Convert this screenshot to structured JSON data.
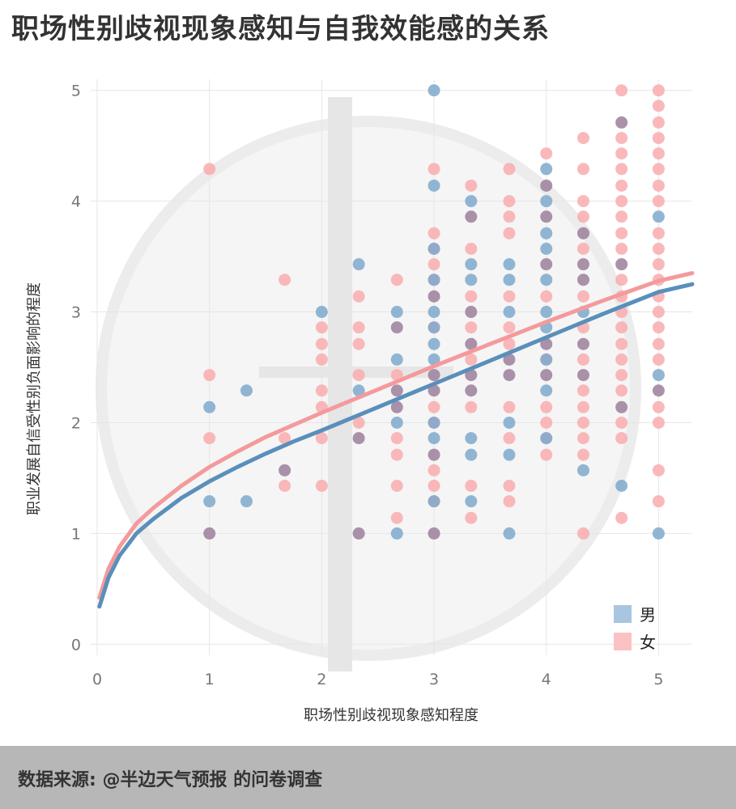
{
  "title": "职场性别歧视现象感知与自我效能感的关系",
  "footer": {
    "source": "数据来源: @半边天气预报 的问卷调查"
  },
  "colors": {
    "male": "#5a8fbb",
    "female": "#f49a9c",
    "male_dot": "#7ea9cc",
    "female_dot": "#f9abae",
    "overlap_dot": "#9b7f9c"
  },
  "chart_data": {
    "type": "scatter",
    "xlabel": "职场性别歧视现象感知程度",
    "ylabel": "职业发展自信受性别负面影响的程度",
    "xlim": [
      0,
      5.3
    ],
    "ylim": [
      -0.1,
      5.1
    ],
    "xticks": [
      0,
      1,
      2,
      3,
      4,
      5
    ],
    "yticks": [
      0,
      1,
      2,
      3,
      4,
      5
    ],
    "grid": true,
    "legend": {
      "position": "bottom-right",
      "entries": [
        {
          "label": "男",
          "color": "#a8c6df"
        },
        {
          "label": "女",
          "color": "#fbc2c3"
        }
      ]
    },
    "series": [
      {
        "name": "男",
        "points": [
          [
            1,
            1
          ],
          [
            1,
            1.29
          ],
          [
            1,
            2.14
          ],
          [
            1.33,
            1.29
          ],
          [
            1.33,
            2.29
          ],
          [
            1.67,
            1.57
          ],
          [
            2,
            3
          ],
          [
            2.33,
            1
          ],
          [
            2.33,
            1.86
          ],
          [
            2.33,
            2.29
          ],
          [
            2.33,
            3.43
          ],
          [
            2.67,
            1
          ],
          [
            2.67,
            2
          ],
          [
            2.67,
            2.14
          ],
          [
            2.67,
            2.29
          ],
          [
            2.67,
            2.57
          ],
          [
            2.67,
            2.86
          ],
          [
            2.67,
            3
          ],
          [
            3,
            1
          ],
          [
            3,
            1.29
          ],
          [
            3,
            1.71
          ],
          [
            3,
            1.86
          ],
          [
            3,
            2
          ],
          [
            3,
            2.29
          ],
          [
            3,
            2.43
          ],
          [
            3,
            2.57
          ],
          [
            3,
            2.71
          ],
          [
            3,
            2.86
          ],
          [
            3,
            3
          ],
          [
            3,
            3.14
          ],
          [
            3,
            3.29
          ],
          [
            3,
            3.57
          ],
          [
            3,
            4.14
          ],
          [
            3,
            5
          ],
          [
            3.33,
            1.29
          ],
          [
            3.33,
            1.71
          ],
          [
            3.33,
            1.86
          ],
          [
            3.33,
            2.29
          ],
          [
            3.33,
            2.43
          ],
          [
            3.33,
            2.71
          ],
          [
            3.33,
            3
          ],
          [
            3.33,
            3.29
          ],
          [
            3.33,
            3.43
          ],
          [
            3.33,
            3.86
          ],
          [
            3.33,
            4
          ],
          [
            3.67,
            1
          ],
          [
            3.67,
            1.71
          ],
          [
            3.67,
            2
          ],
          [
            3.67,
            2.43
          ],
          [
            3.67,
            2.57
          ],
          [
            3.67,
            3
          ],
          [
            3.67,
            3.29
          ],
          [
            3.67,
            3.43
          ],
          [
            4,
            1.86
          ],
          [
            4,
            2.29
          ],
          [
            4,
            2.43
          ],
          [
            4,
            2.57
          ],
          [
            4,
            2.71
          ],
          [
            4,
            2.86
          ],
          [
            4,
            3
          ],
          [
            4,
            3.29
          ],
          [
            4,
            3.43
          ],
          [
            4,
            3.57
          ],
          [
            4,
            3.71
          ],
          [
            4,
            3.86
          ],
          [
            4,
            4
          ],
          [
            4,
            4.14
          ],
          [
            4,
            4.29
          ],
          [
            4.33,
            1.57
          ],
          [
            4.33,
            2.43
          ],
          [
            4.33,
            2.71
          ],
          [
            4.33,
            3
          ],
          [
            4.33,
            3.29
          ],
          [
            4.33,
            3.43
          ],
          [
            4.33,
            3.71
          ],
          [
            4.67,
            1.43
          ],
          [
            4.67,
            2.14
          ],
          [
            4.67,
            3.43
          ],
          [
            4.67,
            4.71
          ],
          [
            5,
            1
          ],
          [
            5,
            2.29
          ],
          [
            5,
            2.43
          ],
          [
            5,
            3.86
          ]
        ],
        "fit_line": {
          "x": [
            0.02,
            0.1,
            0.2,
            0.35,
            0.5,
            0.75,
            1,
            1.25,
            1.5,
            1.75,
            2,
            2.5,
            3,
            3.5,
            4,
            4.5,
            5,
            5.3
          ],
          "y": [
            0.34,
            0.6,
            0.8,
            1.0,
            1.13,
            1.32,
            1.47,
            1.6,
            1.72,
            1.83,
            1.93,
            2.14,
            2.35,
            2.56,
            2.77,
            2.98,
            3.18,
            3.25
          ]
        }
      },
      {
        "name": "女",
        "points": [
          [
            1,
            1
          ],
          [
            1,
            1.86
          ],
          [
            1,
            2.43
          ],
          [
            1,
            4.29
          ],
          [
            1.67,
            1.43
          ],
          [
            1.67,
            1.86
          ],
          [
            1.67,
            3.29
          ],
          [
            2,
            1.43
          ],
          [
            2,
            1.86
          ],
          [
            2,
            2.14
          ],
          [
            2,
            2.29
          ],
          [
            2,
            2.57
          ],
          [
            2,
            2.71
          ],
          [
            2,
            2.86
          ],
          [
            2.33,
            1
          ],
          [
            2.33,
            2
          ],
          [
            2.33,
            2.43
          ],
          [
            2.33,
            2.71
          ],
          [
            2.33,
            2.86
          ],
          [
            2.33,
            3.14
          ],
          [
            2.67,
            1.14
          ],
          [
            2.67,
            1.43
          ],
          [
            2.67,
            1.71
          ],
          [
            2.67,
            1.86
          ],
          [
            2.67,
            2.43
          ],
          [
            2.67,
            3.29
          ],
          [
            3,
            1.29
          ],
          [
            3,
            1.43
          ],
          [
            3,
            1.57
          ],
          [
            3,
            2
          ],
          [
            3,
            2.14
          ],
          [
            3,
            2.43
          ],
          [
            3,
            2.86
          ],
          [
            3,
            3.14
          ],
          [
            3,
            3.29
          ],
          [
            3,
            3.43
          ],
          [
            3,
            3.57
          ],
          [
            3,
            3.71
          ],
          [
            3,
            4.29
          ],
          [
            3.33,
            1.14
          ],
          [
            3.33,
            1.43
          ],
          [
            3.33,
            2.14
          ],
          [
            3.33,
            2.57
          ],
          [
            3.33,
            2.86
          ],
          [
            3.33,
            3.14
          ],
          [
            3.33,
            3.57
          ],
          [
            3.33,
            4.14
          ],
          [
            3.67,
            1.29
          ],
          [
            3.67,
            1.43
          ],
          [
            3.67,
            1.86
          ],
          [
            3.67,
            2.14
          ],
          [
            3.67,
            2.71
          ],
          [
            3.67,
            2.86
          ],
          [
            3.67,
            3.14
          ],
          [
            3.67,
            3.71
          ],
          [
            3.67,
            3.86
          ],
          [
            3.67,
            4
          ],
          [
            3.67,
            4.29
          ],
          [
            4,
            1.71
          ],
          [
            4,
            1.86
          ],
          [
            4,
            2
          ],
          [
            4,
            2.14
          ],
          [
            4,
            2.57
          ],
          [
            4,
            3.14
          ],
          [
            4,
            3.43
          ],
          [
            4,
            3.86
          ],
          [
            4,
            4.43
          ],
          [
            4.33,
            1
          ],
          [
            4.33,
            1.71
          ],
          [
            4.33,
            1.86
          ],
          [
            4.33,
            2
          ],
          [
            4.33,
            2.14
          ],
          [
            4.33,
            2.29
          ],
          [
            4.33,
            2.57
          ],
          [
            4.33,
            2.86
          ],
          [
            4.33,
            3.14
          ],
          [
            4.33,
            3.57
          ],
          [
            4.33,
            3.86
          ],
          [
            4.33,
            4
          ],
          [
            4.33,
            4.29
          ],
          [
            4.33,
            4.57
          ],
          [
            4.67,
            1.14
          ],
          [
            4.67,
            1.86
          ],
          [
            4.67,
            2
          ],
          [
            4.67,
            2.29
          ],
          [
            4.67,
            2.43
          ],
          [
            4.67,
            2.57
          ],
          [
            4.67,
            2.71
          ],
          [
            4.67,
            2.86
          ],
          [
            4.67,
            3
          ],
          [
            4.67,
            3.14
          ],
          [
            4.67,
            3.29
          ],
          [
            4.67,
            3.57
          ],
          [
            4.67,
            3.71
          ],
          [
            4.67,
            3.86
          ],
          [
            4.67,
            4
          ],
          [
            4.67,
            4.14
          ],
          [
            4.67,
            4.29
          ],
          [
            4.67,
            4.43
          ],
          [
            4.67,
            4.57
          ],
          [
            4.67,
            5
          ],
          [
            5,
            1.29
          ],
          [
            5,
            1.57
          ],
          [
            5,
            2
          ],
          [
            5,
            2.14
          ],
          [
            5,
            2.57
          ],
          [
            5,
            2.71
          ],
          [
            5,
            2.86
          ],
          [
            5,
            3
          ],
          [
            5,
            3.14
          ],
          [
            5,
            3.29
          ],
          [
            5,
            3.43
          ],
          [
            5,
            3.57
          ],
          [
            5,
            3.71
          ],
          [
            5,
            4
          ],
          [
            5,
            4.14
          ],
          [
            5,
            4.29
          ],
          [
            5,
            4.43
          ],
          [
            5,
            4.57
          ],
          [
            5,
            4.71
          ],
          [
            5,
            4.86
          ],
          [
            5,
            5
          ]
        ],
        "fit_line": {
          "x": [
            0.02,
            0.1,
            0.2,
            0.35,
            0.5,
            0.75,
            1,
            1.25,
            1.5,
            1.75,
            2,
            2.5,
            3,
            3.5,
            4,
            4.5,
            5,
            5.3
          ],
          "y": [
            0.42,
            0.68,
            0.88,
            1.09,
            1.23,
            1.43,
            1.6,
            1.74,
            1.87,
            1.98,
            2.09,
            2.3,
            2.51,
            2.71,
            2.91,
            3.1,
            3.28,
            3.35
          ]
        }
      }
    ],
    "overlap_points": [
      [
        1,
        1
      ],
      [
        1.67,
        1.57
      ],
      [
        2.33,
        1
      ],
      [
        2.33,
        1.86
      ],
      [
        2.67,
        2.14
      ],
      [
        2.67,
        2.29
      ],
      [
        2.67,
        2.86
      ],
      [
        3,
        1
      ],
      [
        3,
        1.71
      ],
      [
        3,
        2.29
      ],
      [
        3,
        2.43
      ],
      [
        3,
        3.14
      ],
      [
        3.33,
        2.29
      ],
      [
        3.33,
        2.43
      ],
      [
        3.33,
        2.71
      ],
      [
        3.33,
        3
      ],
      [
        3.33,
        3.86
      ],
      [
        3.67,
        2.43
      ],
      [
        3.67,
        2.57
      ],
      [
        4,
        2.43
      ],
      [
        4,
        2.71
      ],
      [
        4,
        3.43
      ],
      [
        4,
        3.86
      ],
      [
        4,
        4.14
      ],
      [
        4.33,
        2.43
      ],
      [
        4.33,
        2.71
      ],
      [
        4.33,
        3.29
      ],
      [
        4.33,
        3.43
      ],
      [
        4.33,
        3.71
      ],
      [
        4.67,
        2.14
      ],
      [
        4.67,
        3.43
      ],
      [
        4.67,
        4.71
      ],
      [
        5,
        2.29
      ]
    ]
  }
}
